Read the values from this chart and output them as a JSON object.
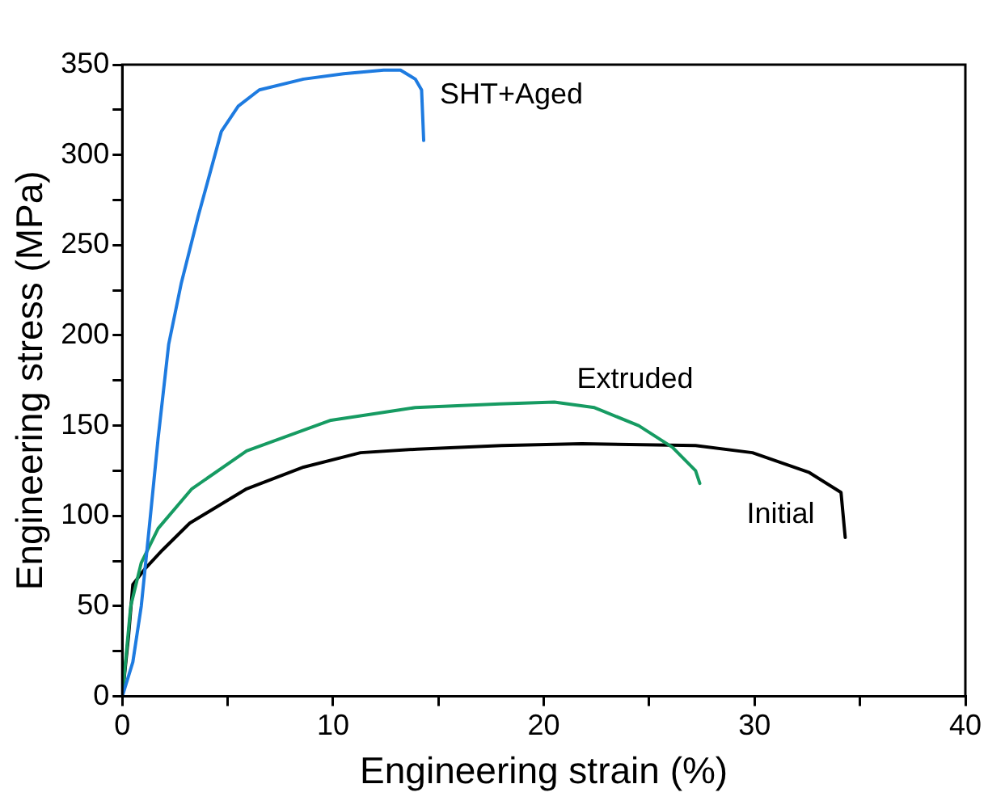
{
  "chart_data": {
    "type": "line",
    "xlabel": "Engineering strain (%)",
    "ylabel": "Engineering stress (MPa)",
    "xlim": [
      0,
      40
    ],
    "ylim": [
      0,
      350
    ],
    "xticks": [
      0,
      {
        "value": 5,
        "label": null
      },
      10,
      {
        "value": 15,
        "label": null
      },
      20,
      {
        "value": 25,
        "label": null
      },
      30,
      {
        "value": 35,
        "label": null
      },
      40
    ],
    "yticks": [
      0,
      {
        "value": 25,
        "label": null
      },
      50,
      {
        "value": 75,
        "label": null
      },
      100,
      {
        "value": 125,
        "label": null
      },
      150,
      {
        "value": 175,
        "label": null
      },
      200,
      {
        "value": 225,
        "label": null
      },
      250,
      {
        "value": 275,
        "label": null
      },
      300,
      {
        "value": 325,
        "label": null
      },
      350
    ],
    "grid": false,
    "legend": false,
    "marker": "none",
    "line_style": "solid",
    "series": [
      {
        "name": "SHT+Aged",
        "color": "#1e7be0",
        "x": [
          0,
          0.5,
          0.9,
          1.3,
          1.7,
          2.2,
          2.8,
          3.6,
          4.7,
          5.5,
          6.5,
          8.6,
          10.5,
          12.4,
          13.2,
          13.9,
          14.2,
          14.3
        ],
        "values": [
          0,
          19,
          50,
          96,
          143,
          195,
          229,
          266,
          313,
          327,
          336,
          342,
          345,
          347,
          347,
          342,
          336,
          308
        ]
      },
      {
        "name": "Extruded",
        "color": "#169b62",
        "x": [
          0,
          0.4,
          0.9,
          1.7,
          3.3,
          5.9,
          9.9,
          13.9,
          17.9,
          20.5,
          22.4,
          24.5,
          26.1,
          27.2,
          27.4
        ],
        "values": [
          0,
          50,
          74,
          93,
          115,
          136,
          153,
          160,
          162,
          163,
          160,
          150,
          138,
          125,
          118
        ]
      },
      {
        "name": "Initial",
        "color": "#000000",
        "x": [
          0,
          0.3,
          0.5,
          1.1,
          1.9,
          3.2,
          5.9,
          8.6,
          11.3,
          14,
          18,
          21.8,
          27.2,
          29.9,
          32.6,
          34.1,
          34.3
        ],
        "values": [
          0,
          34,
          62,
          71,
          81,
          96,
          115,
          127,
          135,
          137,
          139,
          140,
          139,
          135,
          124,
          113,
          88
        ]
      }
    ]
  }
}
